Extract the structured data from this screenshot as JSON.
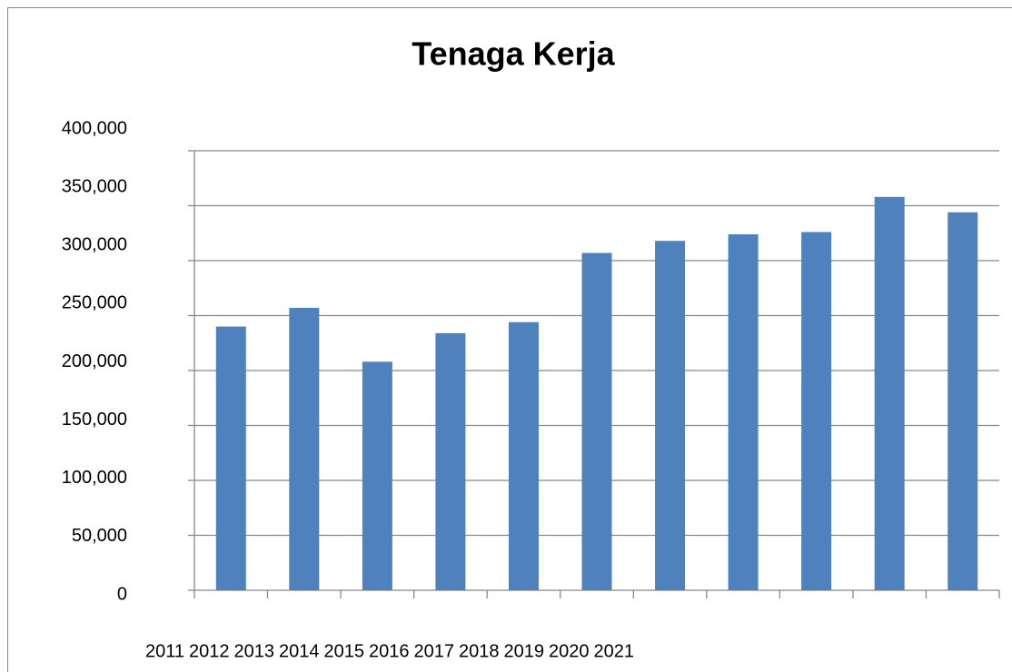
{
  "chart_data": {
    "type": "bar",
    "title": "Tenaga Kerja",
    "categories": [
      "2011",
      "2012",
      "2013",
      "2014",
      "2015",
      "2016",
      "2017",
      "2018",
      "2019",
      "2020",
      "2021"
    ],
    "values": [
      240000,
      257000,
      208000,
      234000,
      244000,
      307000,
      318000,
      324000,
      326000,
      358000,
      344000
    ],
    "color": "#4f81bd",
    "ylim": [
      0,
      400000
    ],
    "yticks": [
      0,
      {
        "value": 50000,
        "label": "50,000"
      },
      {
        "value": 100000,
        "label": "100,000"
      },
      {
        "value": 150000,
        "label": "150,000"
      },
      {
        "value": 200000,
        "label": "200,000"
      },
      {
        "value": 250000,
        "label": "250,000"
      },
      {
        "value": 300000,
        "label": "300,000"
      },
      {
        "value": 350000,
        "label": "350,000"
      },
      {
        "value": 400000,
        "label": "400,000"
      }
    ],
    "grid": true
  }
}
